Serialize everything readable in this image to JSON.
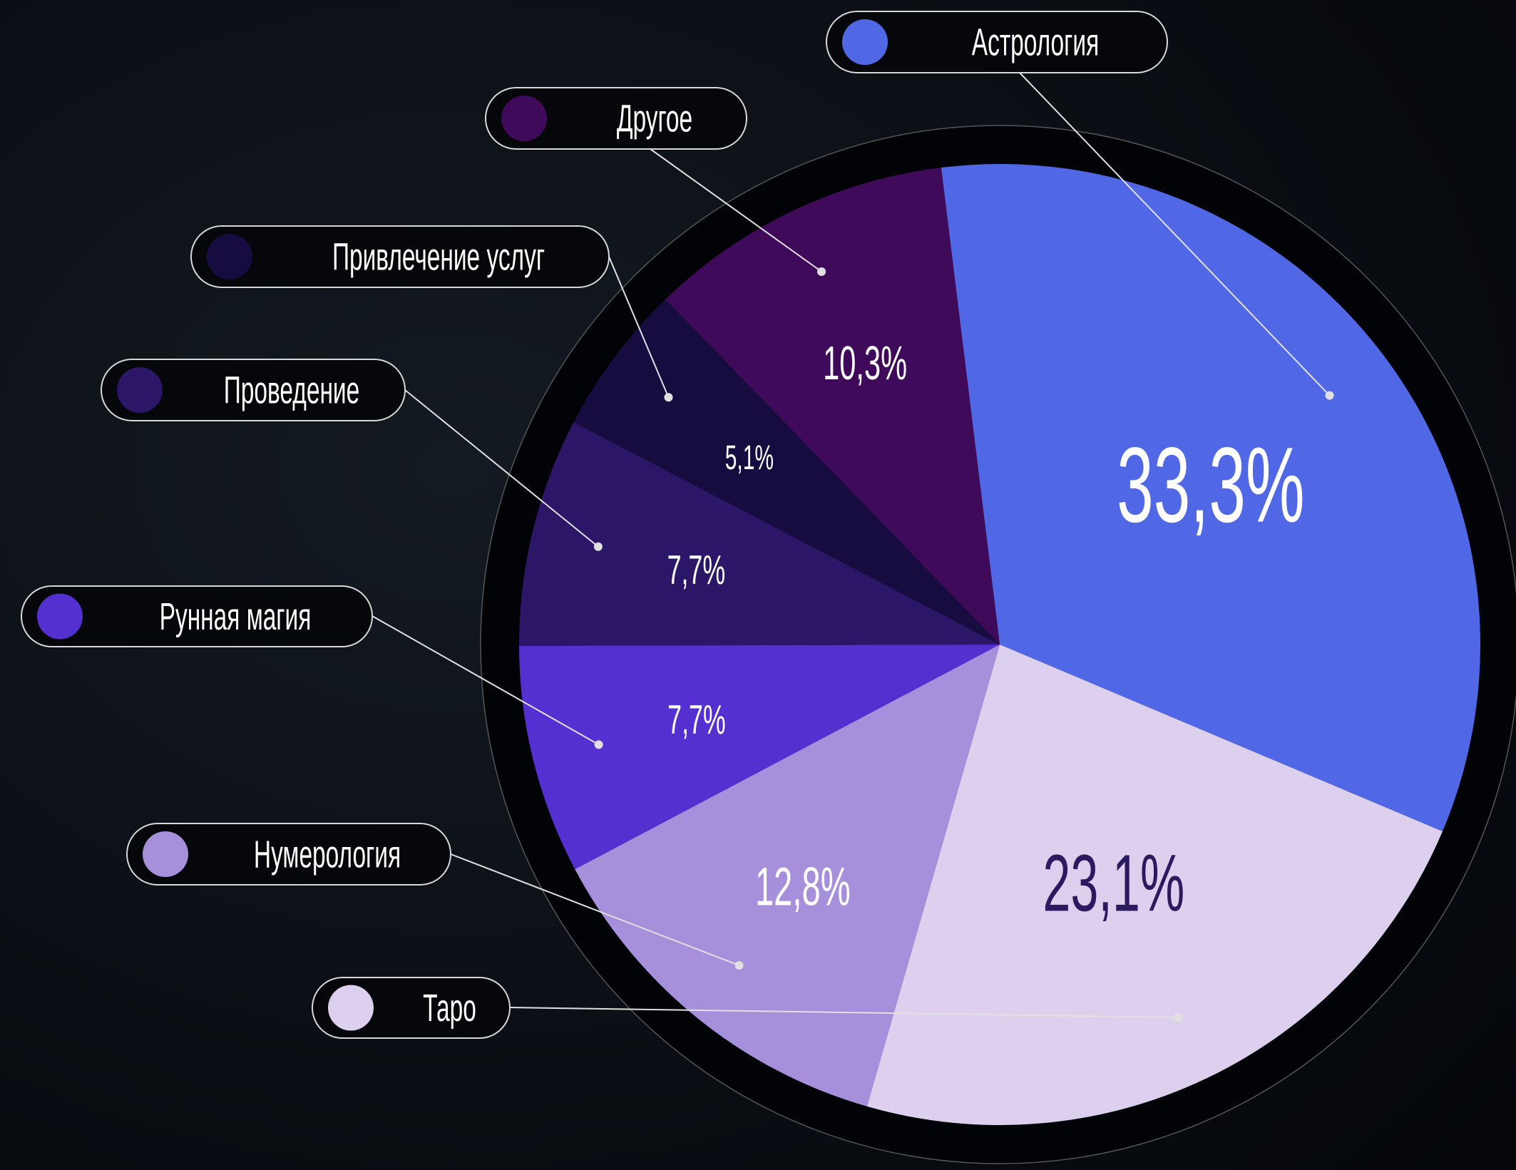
{
  "chart_data": {
    "type": "pie",
    "categories": [
      "Астрология",
      "Таро",
      "Нумерология",
      "Рунная магия",
      "Проведение",
      "Привлечение услуг",
      "Другое"
    ],
    "values": [
      33.3,
      23.1,
      12.8,
      7.7,
      7.7,
      5.1,
      10.3
    ],
    "value_labels": [
      "33,3%",
      "23,1%",
      "12,8%",
      "7,7%",
      "7,7%",
      "5,1%",
      "10,3%"
    ],
    "colors": [
      "#5068e6",
      "#ddd0ee",
      "#a690dc",
      "#5530d0",
      "#2c1668",
      "#170c40",
      "#3f0a5a"
    ]
  }
}
